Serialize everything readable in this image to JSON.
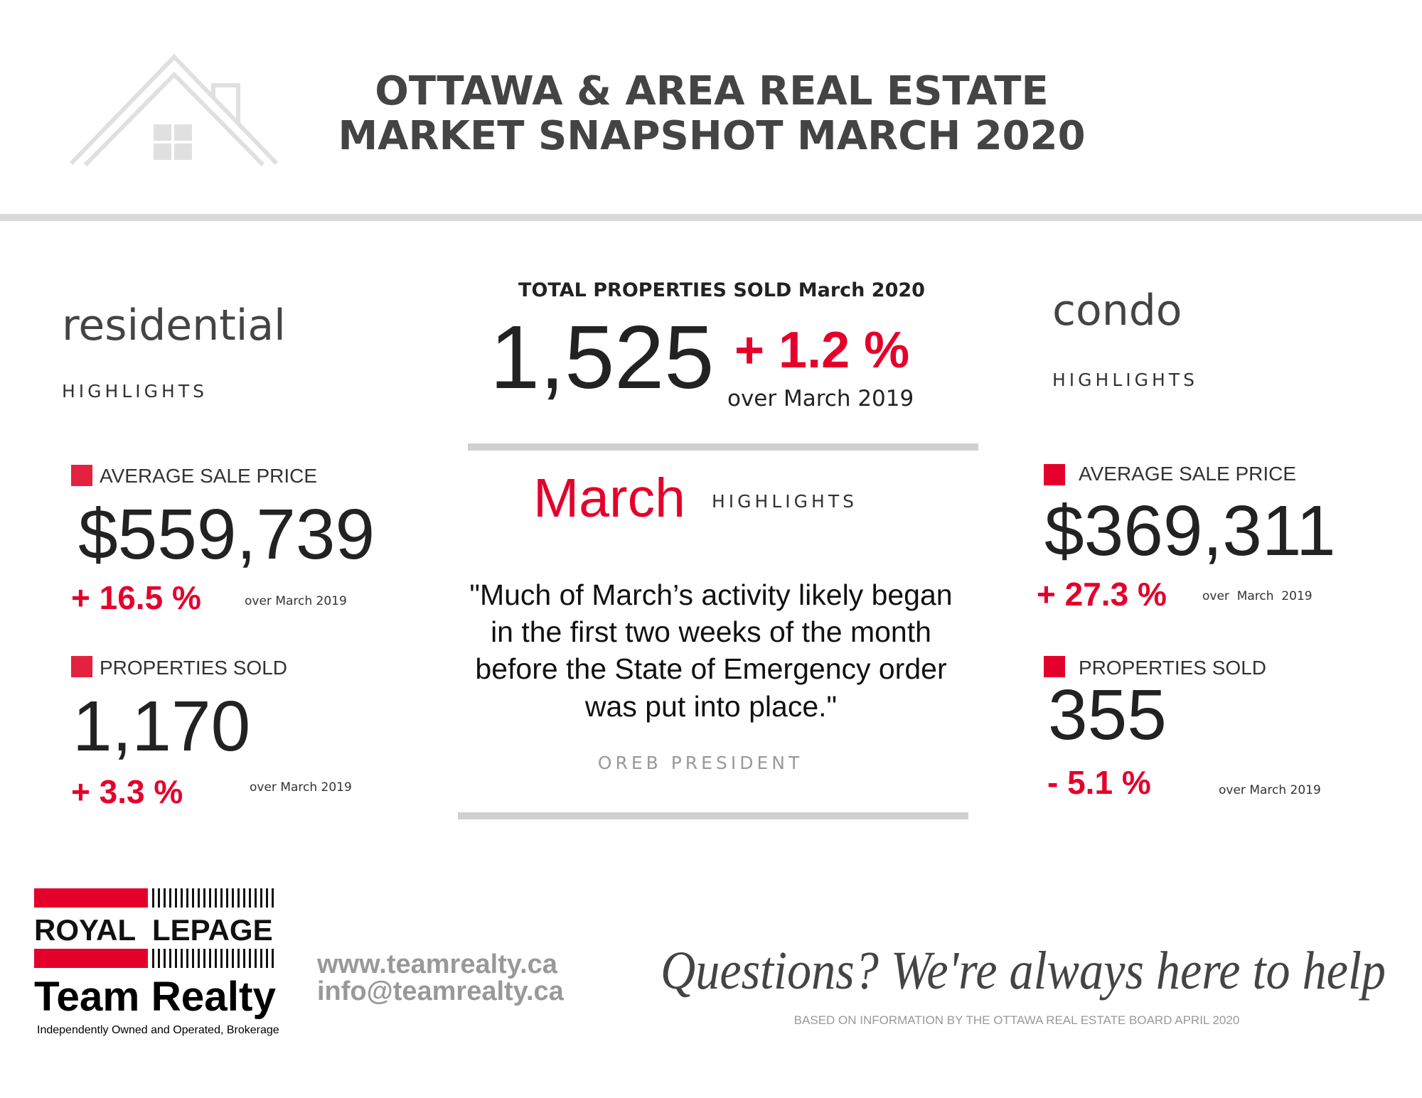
{
  "header": {
    "title_lines": [
      "OTTAWA & AREA REAL ESTATE",
      "MARKET SNAPSHOT MARCH 2020"
    ]
  },
  "residential": {
    "title": "residential",
    "subtitle": "HIGHLIGHTS",
    "stats": [
      {
        "label": "AVERAGE SALE PRICE",
        "value": "$559,739",
        "change": "+ 16.5 %",
        "note": "over March 2019"
      },
      {
        "label": "PROPERTIES SOLD",
        "value": "1,170",
        "change": "+ 3.3 %",
        "note": "over March 2019"
      }
    ]
  },
  "total": {
    "label": "TOTAL PROPERTIES SOLD March 2020",
    "value": "1,525",
    "change": "+ 1.2 %",
    "note": "over March 2019"
  },
  "march": {
    "title": "March",
    "subtitle": "HIGHLIGHTS",
    "quote_lines": [
      "\"Much of March’s activity likely began",
      "in the first two weeks of the month",
      "before the State of Emergency order",
      "was put into place.\""
    ],
    "attribution": "OREB PRESIDENT"
  },
  "condo": {
    "title": "condo",
    "subtitle": "HIGHLIGHTS",
    "stats": [
      {
        "label": "AVERAGE SALE PRICE",
        "value": "$369,311",
        "change": "+ 27.3 %",
        "note": "over  March  2019"
      },
      {
        "label": "PROPERTIES SOLD",
        "value": "355",
        "change": "- 5.1 %",
        "note": "over March 2019"
      }
    ]
  },
  "footer": {
    "logo": {
      "brand_royal": "ROYAL",
      "brand_lepage": "LEPAGE",
      "brand_team": "Team Realty",
      "tagline": "Independently Owned and Operated, Brokerage"
    },
    "website": "www.teamrealty.ca",
    "email": "info@teamrealty.ca",
    "slogan": "Questions? We're always here to help",
    "source": "BASED ON INFORMATION BY THE OTTAWA REAL ESTATE BOARD APRIL 2020"
  }
}
